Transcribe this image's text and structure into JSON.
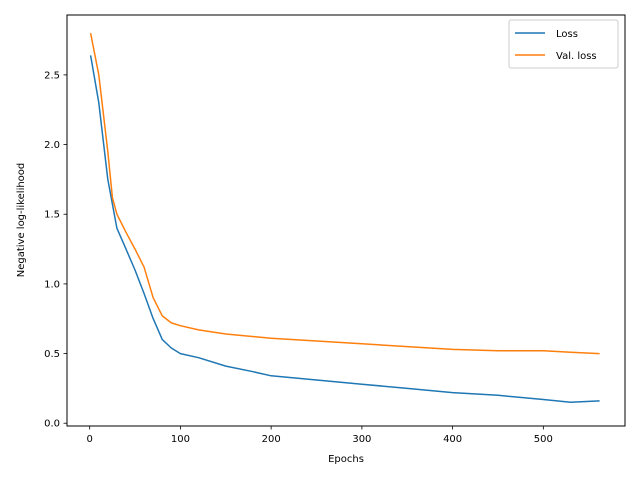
{
  "chart_data": {
    "type": "line",
    "xlabel": "Epochs",
    "ylabel": "Negative log-likelihood",
    "xlim": [
      -25,
      590
    ],
    "ylim": [
      -0.02,
      2.93
    ],
    "xticks": [
      0,
      100,
      200,
      300,
      400,
      500
    ],
    "yticks": [
      0.0,
      0.5,
      1.0,
      1.5,
      2.0,
      2.5
    ],
    "xtick_labels": [
      "0",
      "100",
      "200",
      "300",
      "400",
      "500"
    ],
    "ytick_labels": [
      "0.0",
      "0.5",
      "1.0",
      "1.5",
      "2.0",
      "2.5"
    ],
    "grid": false,
    "legend_position": "top-right",
    "series": [
      {
        "name": "Loss",
        "color": "#1f77b4",
        "points": [
          [
            1,
            2.64
          ],
          [
            10,
            2.3
          ],
          [
            20,
            1.75
          ],
          [
            30,
            1.4
          ],
          [
            40,
            1.25
          ],
          [
            50,
            1.1
          ],
          [
            60,
            0.93
          ],
          [
            70,
            0.75
          ],
          [
            80,
            0.6
          ],
          [
            90,
            0.54
          ],
          [
            100,
            0.5
          ],
          [
            120,
            0.47
          ],
          [
            150,
            0.41
          ],
          [
            180,
            0.37
          ],
          [
            200,
            0.34
          ],
          [
            250,
            0.31
          ],
          [
            300,
            0.28
          ],
          [
            350,
            0.25
          ],
          [
            400,
            0.22
          ],
          [
            450,
            0.2
          ],
          [
            500,
            0.17
          ],
          [
            530,
            0.15
          ],
          [
            562,
            0.16
          ]
        ]
      },
      {
        "name": "Val. loss",
        "color": "#ff7f0e",
        "points": [
          [
            1,
            2.8
          ],
          [
            10,
            2.5
          ],
          [
            20,
            1.95
          ],
          [
            25,
            1.62
          ],
          [
            30,
            1.5
          ],
          [
            40,
            1.37
          ],
          [
            50,
            1.25
          ],
          [
            60,
            1.12
          ],
          [
            70,
            0.9
          ],
          [
            80,
            0.77
          ],
          [
            90,
            0.72
          ],
          [
            100,
            0.7
          ],
          [
            120,
            0.67
          ],
          [
            150,
            0.64
          ],
          [
            200,
            0.61
          ],
          [
            250,
            0.59
          ],
          [
            300,
            0.57
          ],
          [
            350,
            0.55
          ],
          [
            400,
            0.53
          ],
          [
            450,
            0.52
          ],
          [
            500,
            0.52
          ],
          [
            530,
            0.51
          ],
          [
            562,
            0.5
          ]
        ]
      }
    ]
  }
}
